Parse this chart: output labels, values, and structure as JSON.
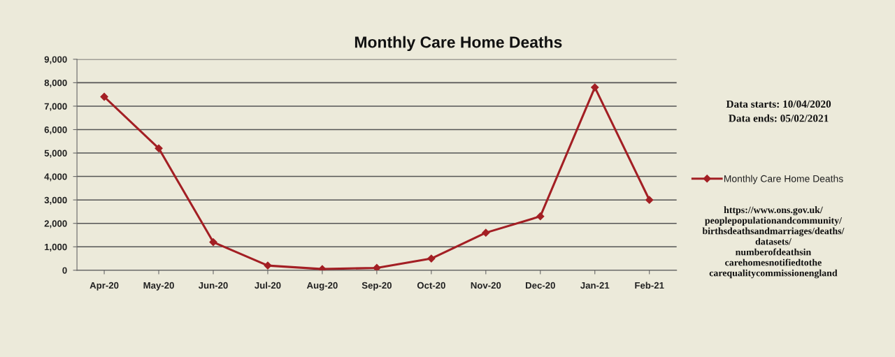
{
  "chart_data": {
    "type": "line",
    "title": "Monthly Care Home Deaths",
    "categories": [
      "Apr-20",
      "May-20",
      "Jun-20",
      "Jul-20",
      "Aug-20",
      "Sep-20",
      "Oct-20",
      "Nov-20",
      "Dec-20",
      "Jan-21",
      "Feb-21"
    ],
    "series": [
      {
        "name": "Monthly Care Home Deaths",
        "color": "#a31f24",
        "values": [
          7400,
          5200,
          1200,
          200,
          50,
          100,
          500,
          1600,
          2300,
          7800,
          3000
        ]
      }
    ],
    "ylim": [
      0,
      9000
    ],
    "yticks": [
      0,
      {
        "value": 1000,
        "label": "1,000"
      },
      {
        "value": 2000,
        "label": "2,000"
      },
      {
        "value": 3000,
        "label": "3,000"
      },
      {
        "value": 4000,
        "label": "4,000"
      },
      {
        "value": 5000,
        "label": "5,000"
      },
      {
        "value": 6000,
        "label": "6,000"
      },
      {
        "value": 7000,
        "label": "7,000"
      },
      {
        "value": 8000,
        "label": "8,000"
      },
      {
        "value": 9000,
        "label": "9,000"
      }
    ],
    "grid": "y",
    "legend": "right",
    "marker": "diamond",
    "line_style": "solid",
    "annotations": [
      "Data starts: 10/04/2020",
      "Data ends: 05/02/2021",
      "https://www.ons.gov.uk/\npeoplepopulationandcommunity/\nbirthsdeathsandmarriages/deaths/\ndatasets/\nnumberofdeathsin\ncarehomesnotifiedtothe\ncarequalitycommissionengland"
    ]
  }
}
